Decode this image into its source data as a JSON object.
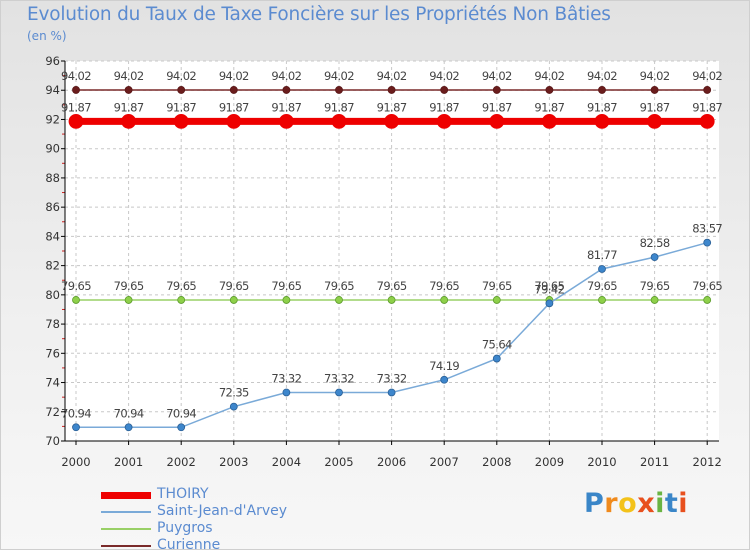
{
  "chart_data": {
    "type": "line",
    "title": "Evolution du Taux de Taxe Foncière sur les Propriétés Non Bâties",
    "ylabel": "(en %)",
    "xlabel": "",
    "ylim": [
      70,
      96
    ],
    "ytick_step": 2,
    "yticks": [
      "70",
      "72",
      "74",
      "76",
      "78",
      "80",
      "82",
      "84",
      "86",
      "88",
      "90",
      "92",
      "94",
      "96"
    ],
    "categories": [
      "2000",
      "2001",
      "2002",
      "2003",
      "2004",
      "2005",
      "2006",
      "2007",
      "2008",
      "2009",
      "2010",
      "2011",
      "2012"
    ],
    "series": [
      {
        "name": "Curienne",
        "color": "#7a2a2a",
        "values": [
          94.02,
          94.02,
          94.02,
          94.02,
          94.02,
          94.02,
          94.02,
          94.02,
          94.02,
          94.02,
          94.02,
          94.02,
          94.02
        ],
        "labels": [
          "94.02",
          "94.02",
          "94.02",
          "94.02",
          "94.02",
          "94.02",
          "94.02",
          "94.02",
          "94.02",
          "94.02",
          "94.02",
          "94.02",
          "94.02"
        ]
      },
      {
        "name": "THOIRY",
        "color": "#ee0000",
        "values": [
          91.87,
          91.87,
          91.87,
          91.87,
          91.87,
          91.87,
          91.87,
          91.87,
          91.87,
          91.87,
          91.87,
          91.87,
          91.87
        ],
        "labels": [
          "91.87",
          "91.87",
          "91.87",
          "91.87",
          "91.87",
          "91.87",
          "91.87",
          "91.87",
          "91.87",
          "91.87",
          "91.87",
          "91.87",
          "91.87"
        ]
      },
      {
        "name": "Puygros",
        "color": "#99d066",
        "values": [
          79.65,
          79.65,
          79.65,
          79.65,
          79.65,
          79.65,
          79.65,
          79.65,
          79.65,
          79.65,
          79.65,
          79.65,
          79.65
        ],
        "labels": [
          "79.65",
          "79.65",
          "79.65",
          "79.65",
          "79.65",
          "79.65",
          "79.65",
          "79.65",
          "79.65",
          "79.65",
          "79.65",
          "79.65",
          "79.65"
        ]
      },
      {
        "name": "Saint-Jean-d'Arvey",
        "color": "#7aaad8",
        "values": [
          70.94,
          70.94,
          70.94,
          72.35,
          73.32,
          73.32,
          73.32,
          74.19,
          75.64,
          79.42,
          81.77,
          82.58,
          83.57
        ],
        "labels": [
          "70.94",
          "70.94",
          "70.94",
          "72.35",
          "73.32",
          "73.32",
          "73.32",
          "74.19",
          "75.64",
          "79.42",
          "81.77",
          "82.58",
          "83.57"
        ]
      }
    ],
    "legend_order": [
      "THOIRY",
      "Saint-Jean-d'Arvey",
      "Puygros",
      "Curienne"
    ]
  },
  "logo": {
    "letters": [
      "P",
      "r",
      "o",
      "x",
      "i",
      "t",
      "i"
    ]
  }
}
